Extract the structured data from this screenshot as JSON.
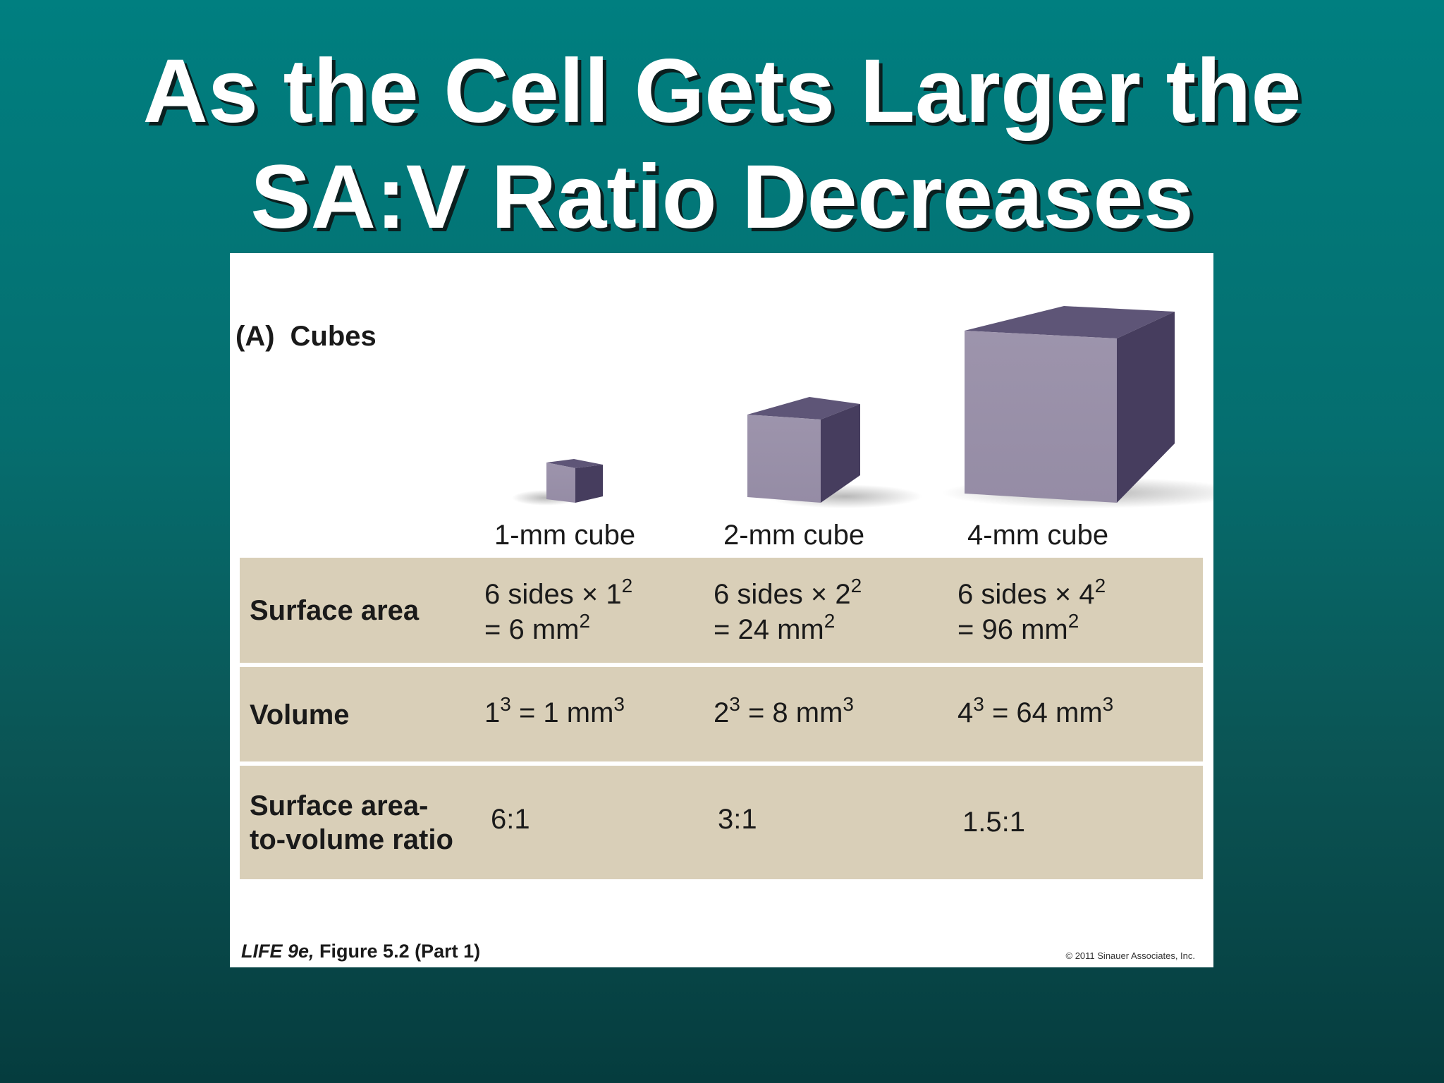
{
  "slide": {
    "title_line1": "As the Cell Gets Larger the",
    "title_line2": "SA:V Ratio Decreases"
  },
  "figure": {
    "panel_letter": "(A)",
    "panel_title": "Cubes",
    "cube_labels": [
      "1-mm cube",
      "2-mm cube",
      "4-mm cube"
    ],
    "rows": [
      {
        "label": "Surface area",
        "cells": [
          {
            "line1": "6 sides × 1",
            "line1_sup": "2",
            "line2": "= 6 mm",
            "line2_sup": "2"
          },
          {
            "line1": "6 sides × 2",
            "line1_sup": "2",
            "line2": "= 24 mm",
            "line2_sup": "2"
          },
          {
            "line1": "6 sides × 4",
            "line1_sup": "2",
            "line2": "= 96 mm",
            "line2_sup": "2"
          }
        ]
      },
      {
        "label": "Volume",
        "cells": [
          {
            "base": "1",
            "exp": "3",
            "rest": " = 1 mm",
            "rest_sup": "3"
          },
          {
            "base": "2",
            "exp": "3",
            "rest": " = 8 mm",
            "rest_sup": "3"
          },
          {
            "base": "4",
            "exp": "3",
            "rest": " = 64 mm",
            "rest_sup": "3"
          }
        ]
      },
      {
        "label_line1": "Surface area-",
        "label_line2": "to-volume ratio",
        "cells": [
          "6:1",
          "3:1",
          "1.5:1"
        ]
      }
    ],
    "footer": {
      "book": "LIFE 9e,",
      "figure_ref": "Figure 5.2 (Part 1)",
      "copyright": "© 2011 Sinauer Associates, Inc."
    }
  },
  "colors": {
    "background_top": "#007f80",
    "background_bottom": "#053c3e",
    "table_fill": "#d9cfb8",
    "cube_front": "#9b92aa",
    "cube_top": "#5e5577",
    "cube_side": "#463d5e"
  }
}
